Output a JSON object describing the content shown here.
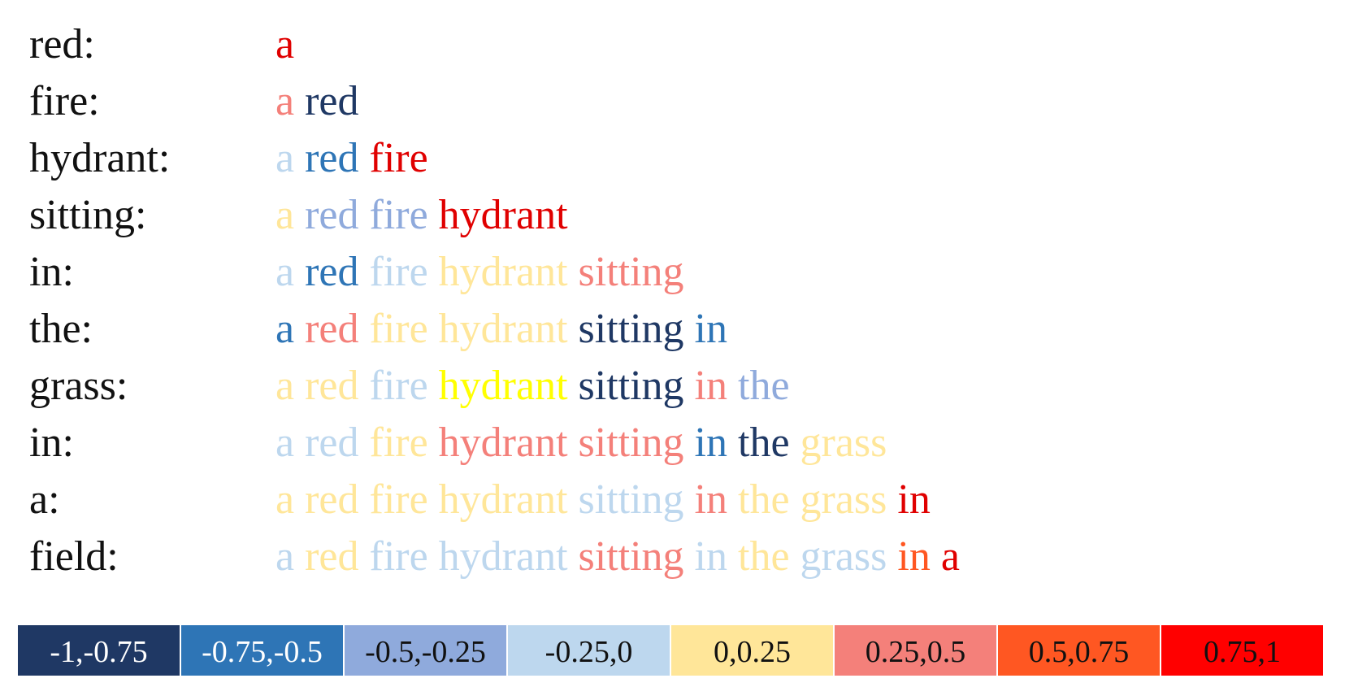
{
  "rows": [
    {
      "label": "red:",
      "tokens": [
        {
          "text": "a",
          "color": "#E00000"
        }
      ]
    },
    {
      "label": "fire:",
      "tokens": [
        {
          "text": "a",
          "color": "#F4807A"
        },
        {
          "text": "red",
          "color": "#1F3864"
        }
      ]
    },
    {
      "label": "hydrant:",
      "tokens": [
        {
          "text": "a",
          "color": "#BDD7EE"
        },
        {
          "text": "red",
          "color": "#2E75B6"
        },
        {
          "text": "fire",
          "color": "#E00000"
        }
      ]
    },
    {
      "label": "sitting:",
      "tokens": [
        {
          "text": "a",
          "color": "#FFE699"
        },
        {
          "text": "red",
          "color": "#8FAADC"
        },
        {
          "text": "fire",
          "color": "#8FAADC"
        },
        {
          "text": "hydrant",
          "color": "#E00000"
        }
      ]
    },
    {
      "label": "in:",
      "tokens": [
        {
          "text": "a",
          "color": "#BDD7EE"
        },
        {
          "text": "red",
          "color": "#2E75B6"
        },
        {
          "text": "fire",
          "color": "#BDD7EE"
        },
        {
          "text": "hydrant",
          "color": "#FFE699"
        },
        {
          "text": "sitting",
          "color": "#F4807A"
        }
      ]
    },
    {
      "label": "the:",
      "tokens": [
        {
          "text": "a",
          "color": "#2E75B6"
        },
        {
          "text": "red",
          "color": "#F4807A"
        },
        {
          "text": "fire",
          "color": "#FFE699"
        },
        {
          "text": "hydrant",
          "color": "#FFE699"
        },
        {
          "text": "sitting",
          "color": "#1F3864"
        },
        {
          "text": "in",
          "color": "#2E75B6"
        }
      ]
    },
    {
      "label": "grass:",
      "tokens": [
        {
          "text": "a",
          "color": "#FFE699"
        },
        {
          "text": "red",
          "color": "#FFE699"
        },
        {
          "text": "fire",
          "color": "#BDD7EE"
        },
        {
          "text": "hydrant",
          "color": "#FFFF00"
        },
        {
          "text": "sitting",
          "color": "#1F3864"
        },
        {
          "text": "in",
          "color": "#F4807A"
        },
        {
          "text": "the",
          "color": "#8FAADC"
        }
      ]
    },
    {
      "label": "in:",
      "tokens": [
        {
          "text": "a",
          "color": "#BDD7EE"
        },
        {
          "text": "red",
          "color": "#BDD7EE"
        },
        {
          "text": "fire",
          "color": "#FFE699"
        },
        {
          "text": "hydrant",
          "color": "#F4807A"
        },
        {
          "text": "sitting",
          "color": "#F4807A"
        },
        {
          "text": "in",
          "color": "#2E75B6"
        },
        {
          "text": "the",
          "color": "#1F3864"
        },
        {
          "text": "grass",
          "color": "#FFE699"
        }
      ]
    },
    {
      "label": "a:",
      "tokens": [
        {
          "text": "a",
          "color": "#FFE699"
        },
        {
          "text": "red",
          "color": "#FFE699"
        },
        {
          "text": "fire",
          "color": "#FFE699"
        },
        {
          "text": "hydrant",
          "color": "#FFE699"
        },
        {
          "text": "sitting",
          "color": "#BDD7EE"
        },
        {
          "text": "in",
          "color": "#F4807A"
        },
        {
          "text": "the",
          "color": "#FFE699"
        },
        {
          "text": "grass",
          "color": "#FFE699"
        },
        {
          "text": "in",
          "color": "#E00000"
        }
      ]
    },
    {
      "label": "field:",
      "tokens": [
        {
          "text": "a",
          "color": "#BDD7EE"
        },
        {
          "text": "red",
          "color": "#FFE699"
        },
        {
          "text": "fire",
          "color": "#BDD7EE"
        },
        {
          "text": "hydrant",
          "color": "#BDD7EE"
        },
        {
          "text": "sitting",
          "color": "#F4807A"
        },
        {
          "text": "in",
          "color": "#BDD7EE"
        },
        {
          "text": "the",
          "color": "#FFE699"
        },
        {
          "text": "grass",
          "color": "#BDD7EE"
        },
        {
          "text": "in",
          "color": "#FF5722"
        },
        {
          "text": "a",
          "color": "#E00000"
        }
      ]
    }
  ],
  "legend": [
    {
      "label": "-1,-0.75",
      "color": "#1F3864",
      "text_color": "#FFFFFF"
    },
    {
      "label": "-0.75,-0.5",
      "color": "#2E75B6",
      "text_color": "#FFFFFF"
    },
    {
      "label": "-0.5,-0.25",
      "color": "#8FAADC",
      "text_color": "#111111"
    },
    {
      "label": "-0.25,0",
      "color": "#BDD7EE",
      "text_color": "#111111"
    },
    {
      "label": "0,0.25",
      "color": "#FFE699",
      "text_color": "#111111"
    },
    {
      "label": "0.25,0.5",
      "color": "#F4807A",
      "text_color": "#111111"
    },
    {
      "label": "0.5,0.75",
      "color": "#FF5722",
      "text_color": "#111111"
    },
    {
      "label": "0.75,1",
      "color": "#FF0000",
      "text_color": "#111111"
    }
  ]
}
